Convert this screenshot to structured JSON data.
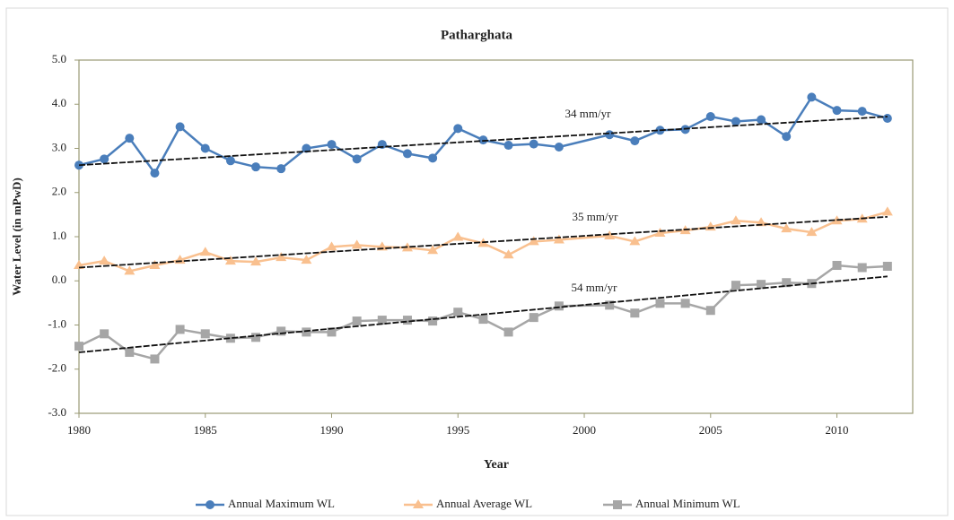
{
  "chart_data": {
    "type": "line",
    "title": "Patharghata",
    "x_label": "Year",
    "y_label": "Water Level (in mPwD)",
    "x": [
      1980,
      1981,
      1982,
      1983,
      1984,
      1985,
      1986,
      1987,
      1988,
      1989,
      1990,
      1991,
      1992,
      1993,
      1994,
      1995,
      1996,
      1997,
      1998,
      1999,
      2001,
      2002,
      2003,
      2004,
      2005,
      2006,
      2007,
      2008,
      2009,
      2010,
      2011,
      2012
    ],
    "series": [
      {
        "name": "Annual Maximum WL",
        "color": "#4a7ebb",
        "marker": "circle",
        "values": [
          2.62,
          2.76,
          3.23,
          2.44,
          3.49,
          3.0,
          2.72,
          2.58,
          2.54,
          3.0,
          3.09,
          2.76,
          3.09,
          2.88,
          2.78,
          3.45,
          3.19,
          3.07,
          3.1,
          3.03,
          3.31,
          3.17,
          3.41,
          3.43,
          3.72,
          3.61,
          3.65,
          3.27,
          4.16,
          3.86,
          3.84,
          3.68
        ]
      },
      {
        "name": "Annual Average WL",
        "color": "#f9c08f",
        "marker": "triangle",
        "values": [
          0.35,
          0.45,
          0.22,
          0.35,
          0.47,
          0.65,
          0.45,
          0.43,
          0.53,
          0.47,
          0.77,
          0.81,
          0.77,
          0.75,
          0.69,
          0.99,
          0.85,
          0.59,
          0.89,
          0.93,
          1.02,
          0.89,
          1.08,
          1.14,
          1.22,
          1.36,
          1.32,
          1.18,
          1.1,
          1.36,
          1.4,
          1.56
        ]
      },
      {
        "name": "Annual Minimum  WL",
        "color": "#a6a6a6",
        "marker": "square",
        "values": [
          -1.48,
          -1.2,
          -1.62,
          -1.77,
          -1.1,
          -1.2,
          -1.3,
          -1.28,
          -1.14,
          -1.16,
          -1.16,
          -0.91,
          -0.89,
          -0.89,
          -0.91,
          -0.71,
          -0.87,
          -1.16,
          -0.83,
          -0.57,
          -0.55,
          -0.73,
          -0.51,
          -0.51,
          -0.67,
          -0.1,
          -0.08,
          -0.04,
          -0.06,
          0.35,
          0.3,
          0.33
        ]
      }
    ],
    "trendlines": [
      {
        "label": "34 mm/yr",
        "x": [
          1980,
          2012
        ],
        "y": [
          2.62,
          3.72
        ]
      },
      {
        "label": "35 mm/yr",
        "x": [
          1980,
          2012
        ],
        "y": [
          0.3,
          1.45
        ]
      },
      {
        "label": "54 mm/yr",
        "x": [
          1980,
          2012
        ],
        "y": [
          -1.62,
          0.1
        ]
      }
    ],
    "xlim": [
      1980,
      2013
    ],
    "xticks": [
      1980,
      1985,
      1990,
      1995,
      2000,
      2005,
      2010
    ],
    "ylim": [
      -3,
      5
    ],
    "yticks": [
      {
        "value": -3,
        "label": "-3.0"
      },
      {
        "value": -2,
        "label": "-2.0"
      },
      {
        "value": -1,
        "label": "-1.0"
      },
      {
        "value": 0,
        "label": "0.0"
      },
      {
        "value": 1,
        "label": "1.0"
      },
      {
        "value": 2,
        "label": "2.0"
      },
      {
        "value": 3,
        "label": "3.0"
      },
      {
        "value": 4,
        "label": "4.0"
      },
      {
        "value": 5,
        "label": "5.0"
      }
    ],
    "legend": "bottom"
  }
}
